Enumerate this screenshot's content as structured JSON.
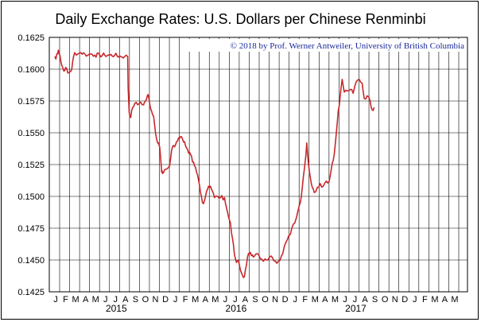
{
  "chart_data": {
    "type": "line",
    "title": "Daily Exchange Rates: U.S. Dollars per Chinese Renminbi",
    "credit": "© 2018 by Prof. Werner Antweiler, University of British Columbia",
    "xlabel": "",
    "ylabel": "",
    "ylim": [
      0.1425,
      0.1625
    ],
    "y_ticks": [
      "0.1625",
      "0.1600",
      "0.1575",
      "0.1550",
      "0.1525",
      "0.1500",
      "0.1475",
      "0.1450",
      "0.1425"
    ],
    "month_labels": [
      "J",
      "F",
      "M",
      "A",
      "M",
      "J",
      "J",
      "A",
      "S",
      "O",
      "N",
      "D",
      "J",
      "F",
      "M",
      "A",
      "M",
      "J",
      "J",
      "A",
      "S",
      "O",
      "N",
      "D",
      "J",
      "F",
      "M",
      "A",
      "M",
      "J",
      "J",
      "A",
      "S",
      "O",
      "N",
      "D",
      "J",
      "F",
      "M",
      "A",
      "M"
    ],
    "year_labels": [
      {
        "label": "2015",
        "month_index": 6
      },
      {
        "label": "2016",
        "month_index": 18
      },
      {
        "label": "2017",
        "month_index": 30
      }
    ],
    "grid": true,
    "line_color": "#c8282b",
    "series": [
      {
        "values": [
          [
            0.0,
            0.161
          ],
          [
            0.1,
            0.1608
          ],
          [
            0.2,
            0.1612
          ],
          [
            0.35,
            0.1615
          ],
          [
            0.5,
            0.1611
          ],
          [
            0.65,
            0.1604
          ],
          [
            0.8,
            0.1601
          ],
          [
            1.0,
            0.1599
          ],
          [
            1.15,
            0.1601
          ],
          [
            1.3,
            0.1597
          ],
          [
            1.5,
            0.1598
          ],
          [
            1.7,
            0.16
          ],
          [
            1.85,
            0.1609
          ],
          [
            2.0,
            0.1613
          ],
          [
            2.3,
            0.1612
          ],
          [
            2.6,
            0.1613
          ],
          [
            3.0,
            0.1612
          ],
          [
            3.3,
            0.1611
          ],
          [
            3.6,
            0.1612
          ],
          [
            4.0,
            0.1611
          ],
          [
            4.5,
            0.1611
          ],
          [
            5.0,
            0.1611
          ],
          [
            5.5,
            0.1611
          ],
          [
            6.0,
            0.1611
          ],
          [
            6.6,
            0.161
          ],
          [
            7.0,
            0.161
          ],
          [
            7.3,
            0.161
          ],
          [
            7.35,
            0.1585
          ],
          [
            7.45,
            0.1566
          ],
          [
            7.6,
            0.1562
          ],
          [
            7.8,
            0.157
          ],
          [
            8.0,
            0.1573
          ],
          [
            8.3,
            0.1572
          ],
          [
            8.6,
            0.1574
          ],
          [
            8.9,
            0.1572
          ],
          [
            9.0,
            0.1574
          ],
          [
            9.2,
            0.1577
          ],
          [
            9.35,
            0.158
          ],
          [
            9.5,
            0.1573
          ],
          [
            9.7,
            0.1567
          ],
          [
            9.9,
            0.1563
          ],
          [
            10.0,
            0.1556
          ],
          [
            10.2,
            0.1545
          ],
          [
            10.4,
            0.1542
          ],
          [
            10.5,
            0.1539
          ],
          [
            10.6,
            0.153
          ],
          [
            10.7,
            0.1519
          ],
          [
            10.8,
            0.1518
          ],
          [
            11.0,
            0.1521
          ],
          [
            11.3,
            0.1522
          ],
          [
            11.5,
            0.1524
          ],
          [
            11.7,
            0.1536
          ],
          [
            11.9,
            0.154
          ],
          [
            12.0,
            0.1539
          ],
          [
            12.2,
            0.1543
          ],
          [
            12.4,
            0.1546
          ],
          [
            12.6,
            0.1547
          ],
          [
            12.8,
            0.1545
          ],
          [
            13.0,
            0.1543
          ],
          [
            13.2,
            0.1538
          ],
          [
            13.4,
            0.1534
          ],
          [
            13.6,
            0.1533
          ],
          [
            13.8,
            0.1527
          ],
          [
            14.0,
            0.1524
          ],
          [
            14.2,
            0.1519
          ],
          [
            14.4,
            0.1513
          ],
          [
            14.6,
            0.1503
          ],
          [
            14.8,
            0.1495
          ],
          [
            15.0,
            0.1497
          ],
          [
            15.2,
            0.1504
          ],
          [
            15.4,
            0.1508
          ],
          [
            15.6,
            0.1508
          ],
          [
            15.8,
            0.1504
          ],
          [
            16.0,
            0.1499
          ],
          [
            16.3,
            0.15
          ],
          [
            16.6,
            0.1499
          ],
          [
            17.0,
            0.1499
          ],
          [
            17.2,
            0.1491
          ],
          [
            17.4,
            0.1484
          ],
          [
            17.6,
            0.1479
          ],
          [
            17.8,
            0.1467
          ],
          [
            18.0,
            0.1454
          ],
          [
            18.2,
            0.1448
          ],
          [
            18.4,
            0.1449
          ],
          [
            18.6,
            0.1442
          ],
          [
            18.8,
            0.1438
          ],
          [
            19.0,
            0.1437
          ],
          [
            19.2,
            0.1446
          ],
          [
            19.4,
            0.1455
          ],
          [
            19.6,
            0.1456
          ],
          [
            19.8,
            0.1454
          ],
          [
            20.0,
            0.1453
          ],
          [
            20.3,
            0.1455
          ],
          [
            20.6,
            0.1451
          ],
          [
            20.9,
            0.1449
          ],
          [
            21.2,
            0.145
          ],
          [
            21.5,
            0.1452
          ],
          [
            21.8,
            0.1452
          ],
          [
            22.1,
            0.1449
          ],
          [
            22.4,
            0.1449
          ],
          [
            22.7,
            0.1453
          ],
          [
            23.0,
            0.1461
          ],
          [
            23.3,
            0.1466
          ],
          [
            23.6,
            0.147
          ],
          [
            23.9,
            0.1478
          ],
          [
            24.2,
            0.1483
          ],
          [
            24.5,
            0.1493
          ],
          [
            24.7,
            0.15
          ],
          [
            24.9,
            0.1515
          ],
          [
            25.1,
            0.1528
          ],
          [
            25.25,
            0.1542
          ],
          [
            25.4,
            0.1527
          ],
          [
            25.6,
            0.1515
          ],
          [
            25.8,
            0.1507
          ],
          [
            26.0,
            0.1503
          ],
          [
            26.3,
            0.1507
          ],
          [
            26.6,
            0.151
          ],
          [
            26.9,
            0.1508
          ],
          [
            27.2,
            0.1512
          ],
          [
            27.5,
            0.1512
          ],
          [
            27.8,
            0.1526
          ],
          [
            28.0,
            0.1533
          ],
          [
            28.2,
            0.1549
          ],
          [
            28.4,
            0.1567
          ],
          [
            28.6,
            0.1579
          ],
          [
            28.8,
            0.1592
          ],
          [
            29.0,
            0.1582
          ],
          [
            29.3,
            0.1583
          ],
          [
            29.6,
            0.1584
          ],
          [
            29.9,
            0.1581
          ],
          [
            30.2,
            0.159
          ],
          [
            30.5,
            0.1592
          ],
          [
            30.8,
            0.1589
          ],
          [
            31.0,
            0.1577
          ],
          [
            31.3,
            0.1579
          ],
          [
            31.6,
            0.1575
          ],
          [
            31.8,
            0.1568
          ],
          [
            32.0,
            0.157
          ]
        ]
      }
    ]
  }
}
